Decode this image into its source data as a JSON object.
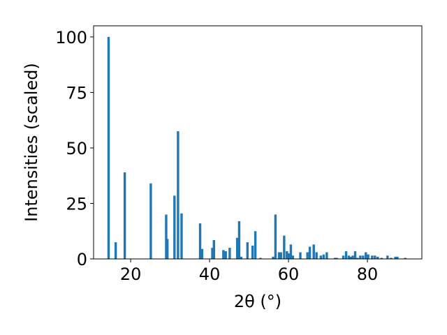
{
  "chart_data": {
    "type": "bar",
    "title": "",
    "xlabel": "2θ (°)",
    "ylabel": "Intensities (scaled)",
    "xlim": [
      10.6,
      93.8
    ],
    "ylim": [
      0,
      105
    ],
    "xticks": [
      20,
      40,
      60,
      80
    ],
    "yticks": [
      0,
      25,
      50,
      75,
      100
    ],
    "grid": false,
    "bar_color": "#1f77b4",
    "x": [
      14.4,
      16.2,
      18.5,
      25.1,
      29.0,
      29.3,
      31.1,
      32.0,
      32.9,
      37.6,
      38.1,
      40.7,
      41.1,
      43.5,
      44.1,
      45.1,
      47.0,
      47.5,
      48.0,
      49.6,
      50.9,
      51.6,
      52.9,
      56.1,
      56.7,
      57.6,
      58.1,
      58.9,
      59.6,
      60.1,
      60.6,
      61.1,
      63.0,
      64.8,
      65.4,
      66.4,
      67.1,
      68.2,
      68.9,
      69.7,
      71.8,
      72.2,
      73.9,
      74.6,
      75.3,
      75.8,
      76.3,
      76.9,
      77.5,
      78.2,
      78.9,
      79.6,
      80.2,
      81.2,
      81.9,
      82.6,
      83.6,
      85.1,
      86.0,
      87.1,
      87.6,
      89.6
    ],
    "values": [
      100,
      7.5,
      39,
      34,
      20,
      9,
      28.5,
      57.5,
      20.5,
      16,
      4.5,
      5,
      8.5,
      4,
      3.5,
      5,
      9.5,
      17,
      1,
      7.5,
      6,
      12.5,
      0.5,
      1,
      20,
      3,
      3,
      10.5,
      3.5,
      2.5,
      6.5,
      1.5,
      3,
      3,
      5.5,
      6.5,
      3,
      1.5,
      2,
      3,
      0.5,
      0.5,
      1.5,
      3.5,
      1.5,
      1,
      1.5,
      3.5,
      0.5,
      1.5,
      1.5,
      3,
      2,
      1.5,
      1.5,
      1,
      0.5,
      1.5,
      0.5,
      1,
      1,
      0.5
    ]
  }
}
